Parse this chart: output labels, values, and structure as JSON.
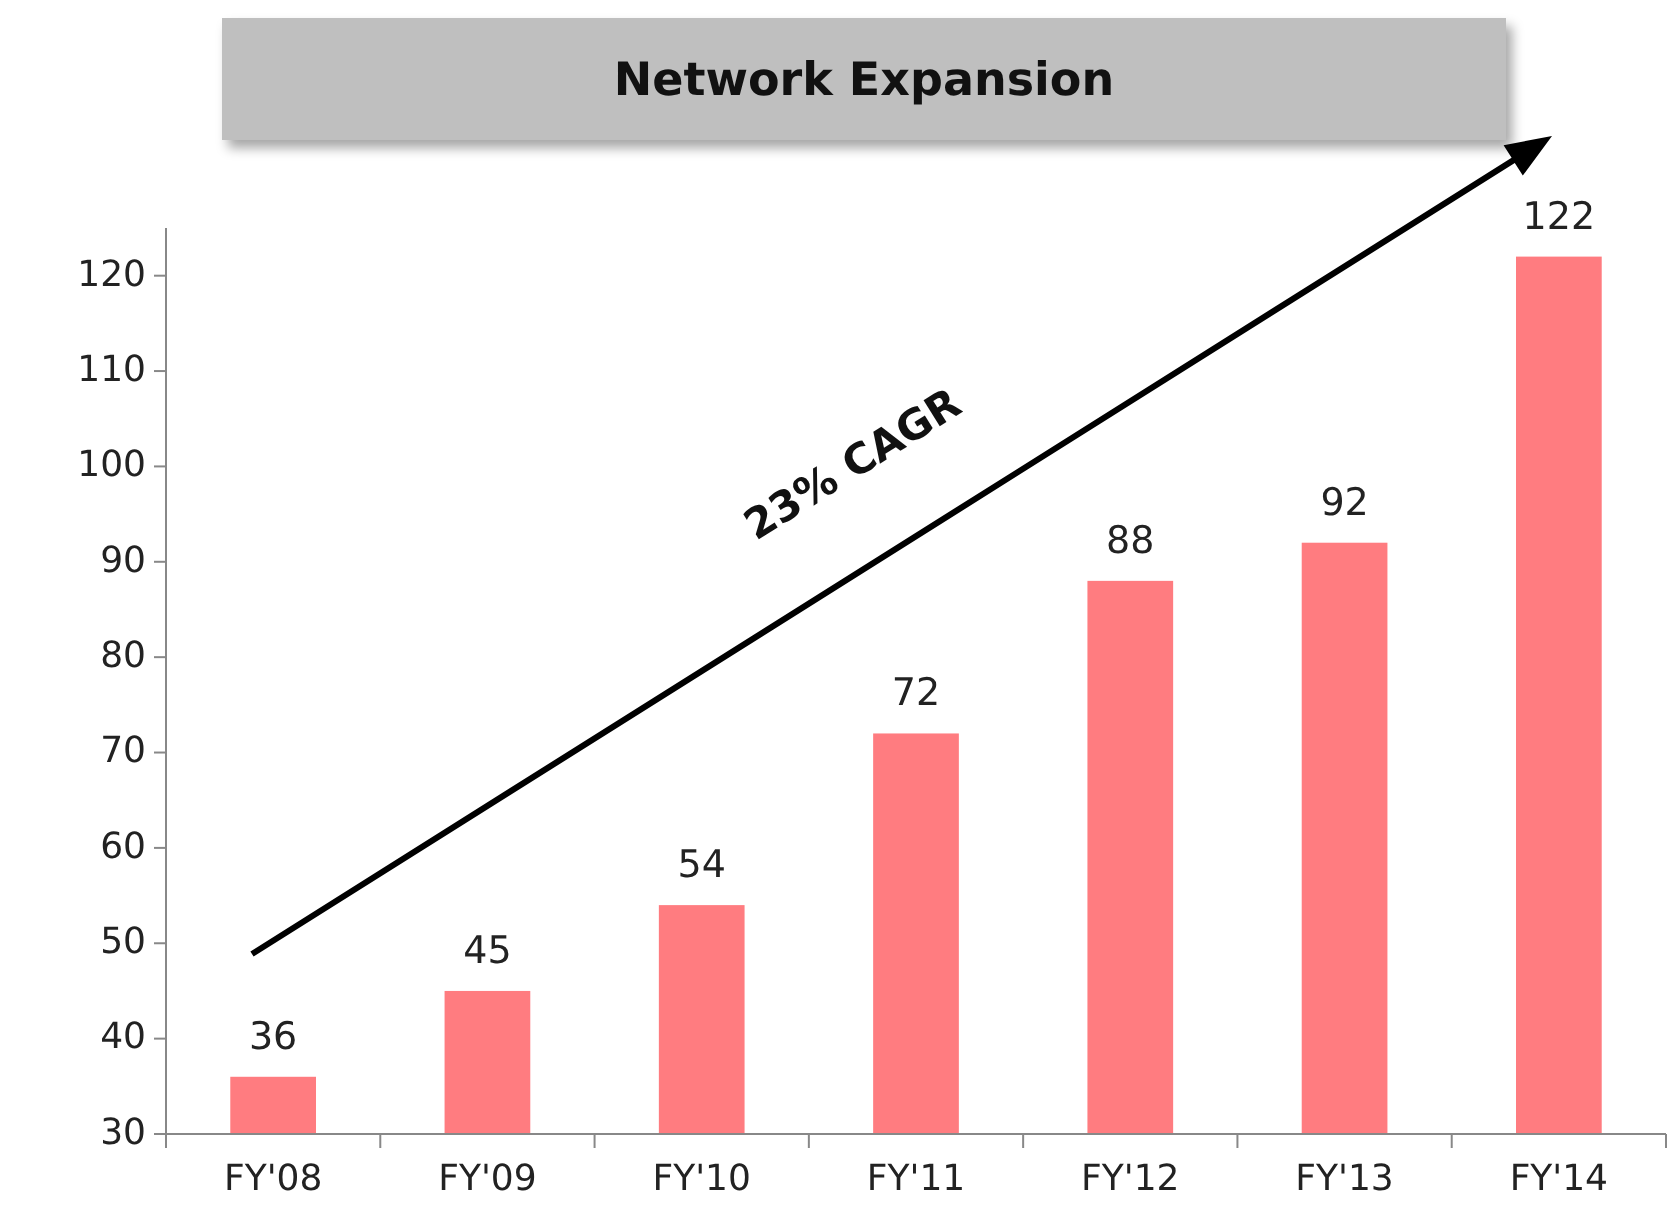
{
  "chart_data": {
    "type": "bar",
    "title": "Network Expansion",
    "categories": [
      "FY'08",
      "FY'09",
      "FY'10",
      "FY'11",
      "FY'12",
      "FY'13",
      "FY'14"
    ],
    "values": [
      36,
      45,
      54,
      72,
      88,
      92,
      122
    ],
    "color": "#ff7c80",
    "ylim": [
      30,
      125
    ],
    "yticks": [
      30,
      40,
      50,
      60,
      70,
      80,
      90,
      100,
      110,
      120
    ],
    "data_labels": true,
    "grid": false,
    "annotations": [
      "23% CAGR"
    ]
  }
}
